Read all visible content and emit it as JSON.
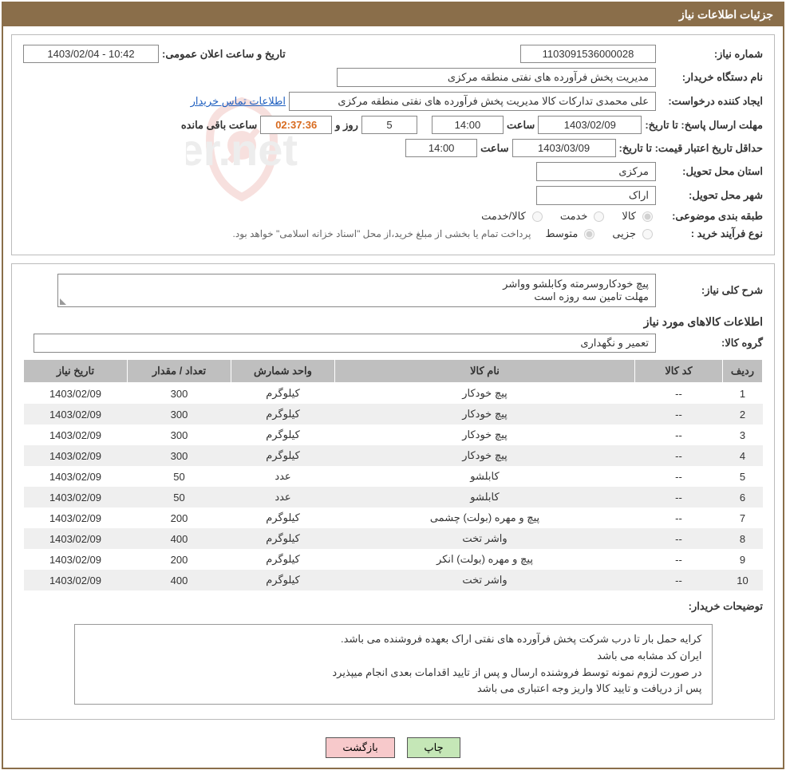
{
  "header": {
    "title": "جزئیات اطلاعات نیاز"
  },
  "info": {
    "need_no_label": "شماره نیاز:",
    "need_no": "1103091536000028",
    "announce_label": "تاریخ و ساعت اعلان عمومی:",
    "announce_value": "1403/02/04 - 10:42",
    "buyer_org_label": "نام دستگاه خریدار:",
    "buyer_org": "مدیریت پخش فرآورده های نفتی منطقه مرکزی",
    "requester_label": "ایجاد کننده درخواست:",
    "requester": "علی محمدی تدارکات کالا مدیریت پخش فرآورده های نفتی منطقه مرکزی",
    "contact_link": "اطلاعات تماس خریدار",
    "reply_deadline_label": "مهلت ارسال پاسخ:",
    "until_date_label": "تا تاریخ:",
    "reply_date": "1403/02/09",
    "time_label": "ساعت",
    "reply_time": "14:00",
    "days_value": "5",
    "days_and_label": "روز و",
    "countdown": "02:37:36",
    "remaining_label": "ساعت باقی مانده",
    "price_validity_label": "حداقل تاریخ اعتبار قیمت:",
    "price_date": "1403/03/09",
    "price_time": "14:00",
    "province_label": "استان محل تحویل:",
    "province": "مرکزی",
    "city_label": "شهر محل تحویل:",
    "city": "اراک",
    "classification_label": "طبقه بندی موضوعی:",
    "class_goods": "کالا",
    "class_service": "خدمت",
    "class_goods_service": "کالا/خدمت",
    "process_label": "نوع فرآیند خرید :",
    "process_partial": "جزیی",
    "process_medium": "متوسط",
    "process_note": "پرداخت تمام یا بخشی از مبلغ خرید،از محل \"اسناد خزانه اسلامی\" خواهد بود."
  },
  "desc": {
    "label": "شرح کلی نیاز:",
    "line1": "پیچ خودکاروسرمته وکابلشو وواشر",
    "line2": "مهلت تامین سه روزه است"
  },
  "goods": {
    "section_title": "اطلاعات کالاهای مورد نیاز",
    "group_label": "گروه کالا:",
    "group_value": "تعمیر و نگهداری",
    "columns": [
      "ردیف",
      "کد کالا",
      "نام کالا",
      "واحد شمارش",
      "تعداد / مقدار",
      "تاریخ نیاز"
    ],
    "rows": [
      [
        "1",
        "--",
        "پیچ خودکار",
        "کیلوگرم",
        "300",
        "1403/02/09"
      ],
      [
        "2",
        "--",
        "پیچ خودکار",
        "کیلوگرم",
        "300",
        "1403/02/09"
      ],
      [
        "3",
        "--",
        "پیچ خودکار",
        "کیلوگرم",
        "300",
        "1403/02/09"
      ],
      [
        "4",
        "--",
        "پیچ خودکار",
        "کیلوگرم",
        "300",
        "1403/02/09"
      ],
      [
        "5",
        "--",
        "کابلشو",
        "عدد",
        "50",
        "1403/02/09"
      ],
      [
        "6",
        "--",
        "کابلشو",
        "عدد",
        "50",
        "1403/02/09"
      ],
      [
        "7",
        "--",
        "پیچ و مهره (بولت) چشمی",
        "کیلوگرم",
        "200",
        "1403/02/09"
      ],
      [
        "8",
        "--",
        "واشر تخت",
        "کیلوگرم",
        "400",
        "1403/02/09"
      ],
      [
        "9",
        "--",
        "پیچ و مهره (بولت) انکر",
        "کیلوگرم",
        "200",
        "1403/02/09"
      ],
      [
        "10",
        "--",
        "واشر تخت",
        "کیلوگرم",
        "400",
        "1403/02/09"
      ]
    ]
  },
  "buyer_notes": {
    "label": "توضیحات خریدار:",
    "lines": [
      "کرایه حمل بار تا درب شرکت  پخش فرآورده های نفتی اراک بعهده فروشنده می باشد.",
      "ایران کد مشابه می باشد",
      "در صورت لزوم نمونه توسط فروشنده ارسال و پس از تایید اقدامات بعدی انجام میپذیرد",
      "پس از دریافت و تایید کالا واریز وجه اعتباری می باشد"
    ]
  },
  "buttons": {
    "print": "چاپ",
    "back": "بازگشت"
  },
  "watermark": {
    "text": "AriaTender.net",
    "shield_stroke": "#d03a2a",
    "text_color": "#8a8a8a"
  }
}
